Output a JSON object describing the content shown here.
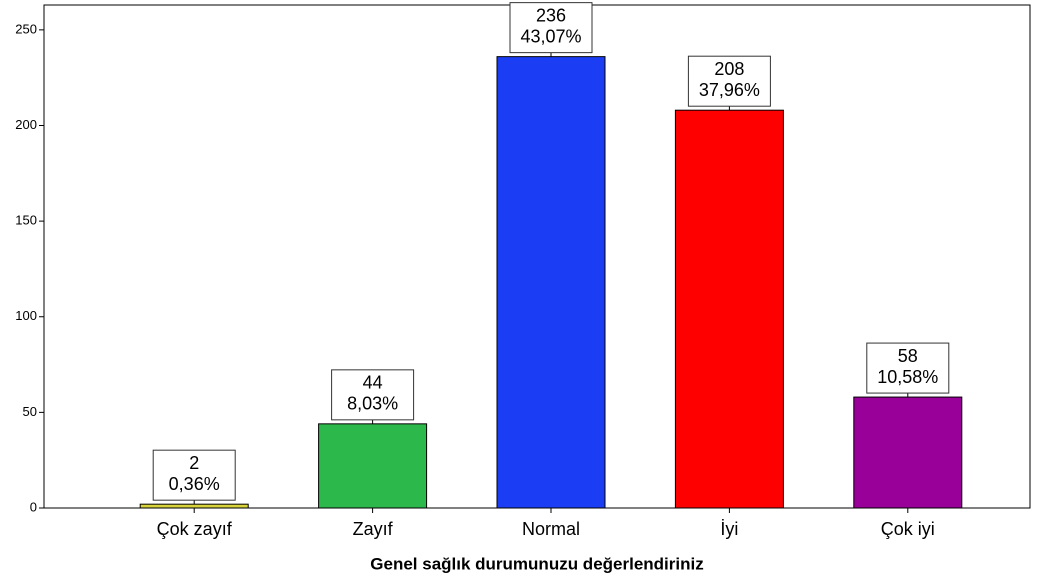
{
  "chart_data": {
    "type": "bar",
    "x_label": "Genel sağlık durumunuzu değerlendiriniz",
    "categories": [
      "Çok zayıf",
      "Zayıf",
      "Normal",
      "İyi",
      "Çok iyi"
    ],
    "values": [
      2,
      44,
      236,
      208,
      58
    ],
    "percents": [
      0.36,
      8.03,
      43.07,
      37.96,
      10.58
    ],
    "percent_labels": [
      "0,36%",
      "8,03%",
      "43,07%",
      "37,96%",
      "10,58%"
    ],
    "colors": [
      "#d9d33b",
      "#2db84b",
      "#1b3ef5",
      "#ff0000",
      "#990099"
    ],
    "ylim": [
      0,
      263
    ],
    "yticks": [
      0,
      50,
      100,
      150,
      200,
      250
    ]
  }
}
